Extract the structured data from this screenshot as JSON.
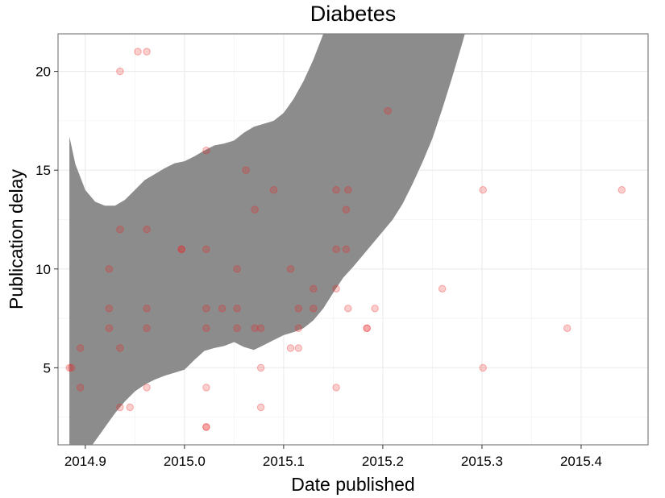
{
  "chart_data": {
    "type": "scatter",
    "title": "Diabetes",
    "xlabel": "Date published",
    "ylabel": "Publication delay",
    "xlim": [
      2014.8725,
      2015.4675
    ],
    "ylim": [
      1.1,
      21.9
    ],
    "x_ticks": [
      2014.9,
      2015.0,
      2015.1,
      2015.2,
      2015.3,
      2015.4
    ],
    "x_tick_labels": [
      "2014.9",
      "2015.0",
      "2015.1",
      "2015.2",
      "2015.3",
      "2015.4"
    ],
    "y_ticks": [
      5,
      10,
      15,
      20
    ],
    "y_tick_labels": [
      "5",
      "10",
      "15",
      "20"
    ],
    "grid": true,
    "legend": "none",
    "colors": {
      "points": "#ee2222",
      "band": "#8c8c8c",
      "grid": "#ebebeb",
      "border": "#7f7f7f"
    },
    "series": [
      {
        "type": "scatter",
        "points": [
          [
            2014.884,
            5
          ],
          [
            2014.886,
            5
          ],
          [
            2014.895,
            6
          ],
          [
            2014.895,
            4
          ],
          [
            2014.924,
            10
          ],
          [
            2014.924,
            8
          ],
          [
            2014.924,
            7
          ],
          [
            2014.935,
            20
          ],
          [
            2014.935,
            12
          ],
          [
            2014.935,
            6
          ],
          [
            2014.935,
            3
          ],
          [
            2014.945,
            3
          ],
          [
            2014.953,
            21
          ],
          [
            2014.962,
            21
          ],
          [
            2014.962,
            12
          ],
          [
            2014.962,
            8
          ],
          [
            2014.962,
            7
          ],
          [
            2014.962,
            4
          ],
          [
            2014.997,
            11
          ],
          [
            2014.997,
            11
          ],
          [
            2015.022,
            16
          ],
          [
            2015.022,
            11
          ],
          [
            2015.022,
            8
          ],
          [
            2015.022,
            7
          ],
          [
            2015.022,
            4
          ],
          [
            2015.022,
            2
          ],
          [
            2015.022,
            2
          ],
          [
            2015.038,
            8
          ],
          [
            2015.053,
            10
          ],
          [
            2015.053,
            8
          ],
          [
            2015.053,
            7
          ],
          [
            2015.062,
            15
          ],
          [
            2015.071,
            13
          ],
          [
            2015.071,
            7
          ],
          [
            2015.077,
            7
          ],
          [
            2015.077,
            5
          ],
          [
            2015.077,
            3
          ],
          [
            2015.09,
            14
          ],
          [
            2015.107,
            10
          ],
          [
            2015.107,
            6
          ],
          [
            2015.115,
            8
          ],
          [
            2015.115,
            7
          ],
          [
            2015.115,
            6
          ],
          [
            2015.13,
            9
          ],
          [
            2015.13,
            8
          ],
          [
            2015.153,
            14
          ],
          [
            2015.153,
            11
          ],
          [
            2015.153,
            9
          ],
          [
            2015.153,
            4
          ],
          [
            2015.163,
            13
          ],
          [
            2015.163,
            11
          ],
          [
            2015.165,
            14
          ],
          [
            2015.165,
            8
          ],
          [
            2015.184,
            7
          ],
          [
            2015.184,
            7
          ],
          [
            2015.192,
            8
          ],
          [
            2015.205,
            18
          ],
          [
            2015.26,
            9
          ],
          [
            2015.301,
            14
          ],
          [
            2015.301,
            5
          ],
          [
            2015.386,
            7
          ],
          [
            2015.441,
            14
          ]
        ]
      },
      {
        "type": "area",
        "description": "confidence band of smoother",
        "x": [
          2014.884,
          2014.89,
          2014.9,
          2014.91,
          2014.92,
          2014.93,
          2014.94,
          2014.95,
          2014.96,
          2014.97,
          2014.98,
          2014.99,
          2015.0,
          2015.01,
          2015.02,
          2015.03,
          2015.04,
          2015.05,
          2015.06,
          2015.07,
          2015.08,
          2015.09,
          2015.1,
          2015.11,
          2015.12,
          2015.13,
          2015.14,
          2015.15,
          2015.16,
          2015.17,
          2015.18,
          2015.19,
          2015.2,
          2015.21,
          2015.22,
          2015.23,
          2015.24,
          2015.25,
          2015.26,
          2015.27,
          2015.28,
          2015.29,
          2015.3
        ],
        "upper": [
          16.7,
          15.3,
          14.0,
          13.4,
          13.2,
          13.2,
          13.5,
          14.0,
          14.5,
          14.8,
          15.1,
          15.35,
          15.45,
          15.7,
          16.0,
          16.25,
          16.35,
          16.5,
          16.9,
          17.2,
          17.35,
          17.5,
          17.9,
          18.6,
          19.5,
          20.6,
          21.9,
          23.0,
          24.0,
          25.0,
          26.2,
          27.5,
          29.0,
          30.5,
          32.0,
          33.5,
          35.0,
          36.5,
          38.0,
          39.5,
          41.0,
          42.5,
          44.0
        ],
        "lower": [
          -0.5,
          0.0,
          0.6,
          1.3,
          2.0,
          2.7,
          3.3,
          3.8,
          4.15,
          4.4,
          4.6,
          4.75,
          4.9,
          5.4,
          5.85,
          6.0,
          6.1,
          6.3,
          6.05,
          5.9,
          6.15,
          6.4,
          6.65,
          6.8,
          7.0,
          7.4,
          8.0,
          8.8,
          9.55,
          10.1,
          10.7,
          11.3,
          11.9,
          12.5,
          13.3,
          14.3,
          15.4,
          16.6,
          18.1,
          19.7,
          21.4,
          23.2,
          25.0
        ]
      }
    ]
  }
}
